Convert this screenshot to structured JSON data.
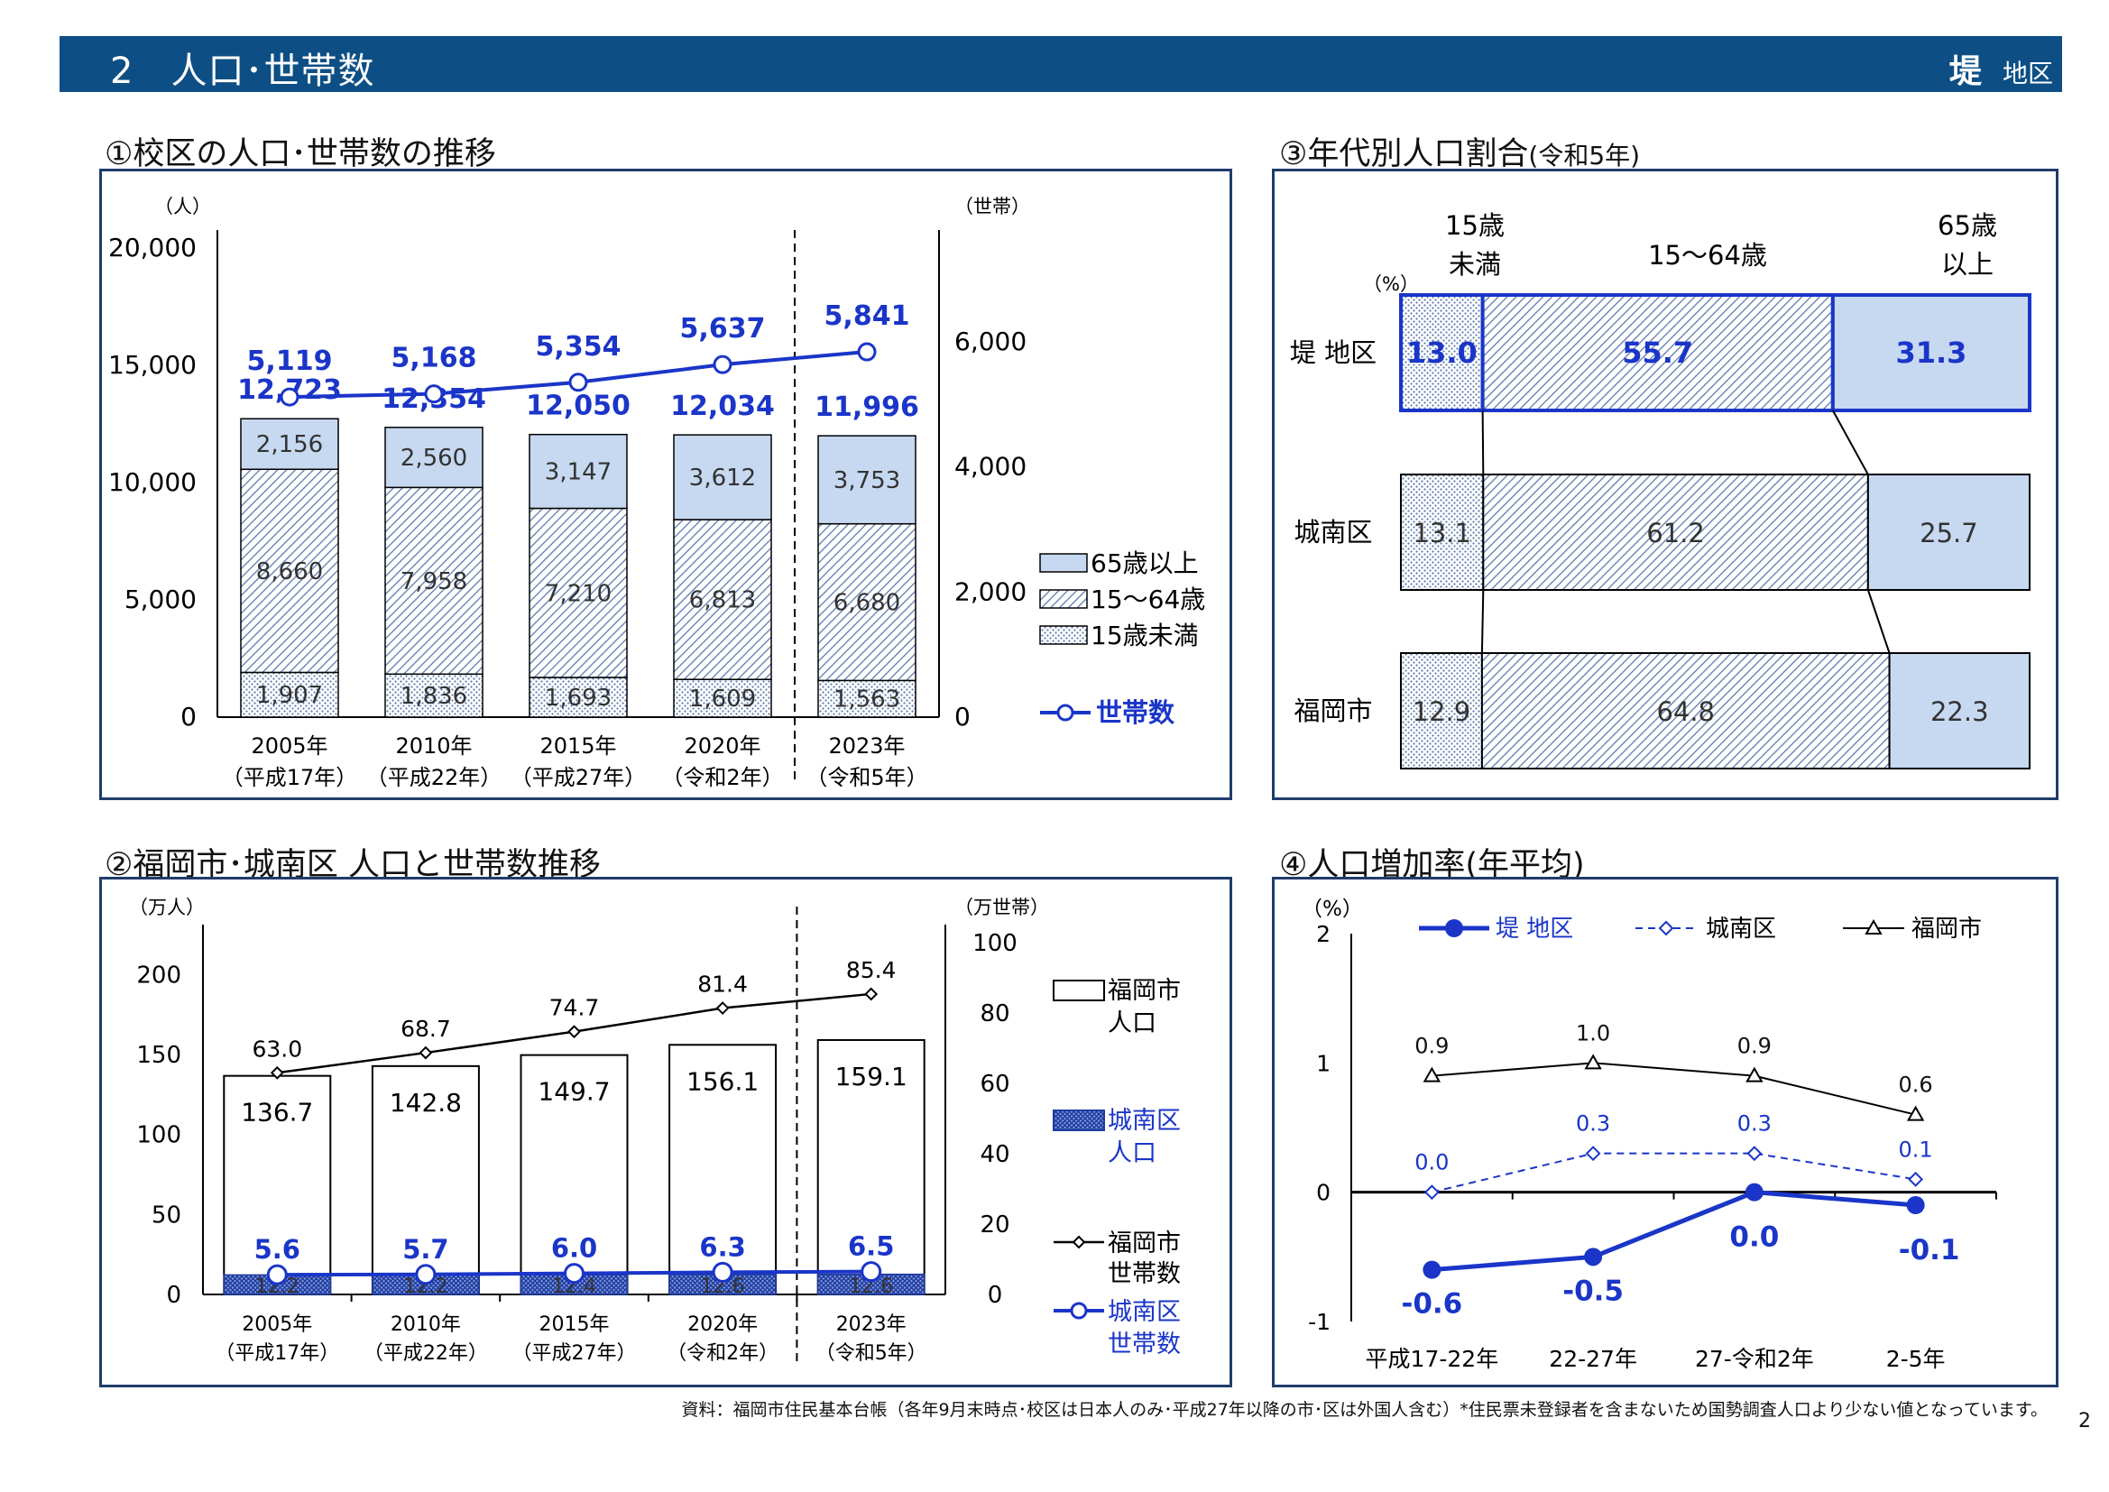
{
  "header": {
    "title": "2　人口･世帯数",
    "district_name": "堤",
    "district_suffix": "地区"
  },
  "colors": {
    "header_bg": "#0d4f85",
    "blue": "#1a35c8",
    "light_blue": "#c6d9f1",
    "panel_border": "#1f3d6b"
  },
  "sections": {
    "s1_title": "①校区の人口･世帯数の推移",
    "s2_title": "②福岡市･城南区 人口と世帯数推移",
    "s3_title": "③年代別人口割合",
    "s3_title_small": "(令和5年)",
    "s4_title": "④人口増加率(年平均)"
  },
  "chart_data": [
    {
      "id": "chart1",
      "type": "bar",
      "stacked": true,
      "left_unit": "（人）",
      "right_unit": "（世帯）",
      "left_ticks": [
        "20,000",
        "15,000",
        "10,000",
        "5,000",
        "0"
      ],
      "right_ticks": [
        "6,000",
        "4,000",
        "2,000",
        "0"
      ],
      "ylim_left": [
        0,
        20000
      ],
      "ylim_right": [
        0,
        7500
      ],
      "categories": [
        "2005年",
        "2010年",
        "2015年",
        "2020年",
        "2023年"
      ],
      "categories_sub": [
        "（平成17年）",
        "（平成22年）",
        "（平成27年）",
        "（令和2年）",
        "（令和5年）"
      ],
      "series": [
        {
          "name": "15歳未満",
          "values": [
            1907,
            1836,
            1693,
            1609,
            1563
          ],
          "labels": [
            "1,907",
            "1,836",
            "1,693",
            "1,609",
            "1,563"
          ]
        },
        {
          "name": "15～64歳",
          "values": [
            8660,
            7958,
            7210,
            6813,
            6680
          ],
          "labels": [
            "8,660",
            "7,958",
            "7,210",
            "6,813",
            "6,680"
          ]
        },
        {
          "name": "65歳以上",
          "values": [
            2156,
            2560,
            3147,
            3612,
            3753
          ],
          "labels": [
            "2,156",
            "2,560",
            "3,147",
            "3,612",
            "3,753"
          ]
        }
      ],
      "totals": [
        "12,723",
        "12,354",
        "12,050",
        "12,034",
        "11,996"
      ],
      "households": {
        "name": "世帯数",
        "values": [
          5119,
          5168,
          5354,
          5637,
          5841
        ],
        "labels": [
          "5,119",
          "5,168",
          "5,354",
          "5,637",
          "5,841"
        ]
      },
      "legend": [
        "65歳以上",
        "15～64歳",
        "15歳未満",
        "世帯数"
      ]
    },
    {
      "id": "chart2",
      "type": "bar",
      "left_unit": "（万人）",
      "right_unit": "（万世帯）",
      "left_ticks": [
        "200",
        "150",
        "100",
        "50",
        "0"
      ],
      "right_ticks": [
        "100",
        "80",
        "60",
        "40",
        "20",
        "0"
      ],
      "ylim_left": [
        0,
        220
      ],
      "ylim_right": [
        0,
        100
      ],
      "categories": [
        "2005年",
        "2010年",
        "2015年",
        "2020年",
        "2023年"
      ],
      "categories_sub": [
        "（平成17年）",
        "（平成22年）",
        "（平成27年）",
        "（令和2年）",
        "（令和5年）"
      ],
      "fukuoka_pop": {
        "name": "福岡市人口",
        "values": [
          136.7,
          142.8,
          149.7,
          156.1,
          159.1
        ],
        "labels": [
          "136.7",
          "142.8",
          "149.7",
          "156.1",
          "159.1"
        ]
      },
      "jonan_pop": {
        "name": "城南区人口",
        "values": [
          12.2,
          12.2,
          12.4,
          12.6,
          12.6
        ],
        "labels": [
          "12.2",
          "12.2",
          "12.4",
          "12.6",
          "12.6"
        ]
      },
      "fukuoka_hh": {
        "name": "福岡市世帯数",
        "values": [
          63.0,
          68.7,
          74.7,
          81.4,
          85.4
        ],
        "labels": [
          "63.0",
          "68.7",
          "74.7",
          "81.4",
          "85.4"
        ]
      },
      "jonan_hh": {
        "name": "城南区世帯数",
        "values": [
          5.6,
          5.7,
          6.0,
          6.3,
          6.5
        ],
        "labels": [
          "5.6",
          "5.7",
          "6.0",
          "6.3",
          "6.5"
        ]
      },
      "legend": [
        "福岡市",
        "人口",
        "城南区",
        "人口",
        "福岡市",
        "世帯数",
        "城南区",
        "世帯数"
      ]
    },
    {
      "id": "chart3",
      "type": "bar",
      "stacked": true,
      "horizontal": true,
      "unit": "（%）",
      "headers": [
        "15歳",
        "未満",
        "15～64歳",
        "65歳",
        "以上"
      ],
      "rows": [
        {
          "label": "堤 地区",
          "values": [
            13.0,
            55.7,
            31.3
          ],
          "labels": [
            "13.0",
            "55.7",
            "31.3"
          ]
        },
        {
          "label": "城南区",
          "values": [
            13.1,
            61.2,
            25.7
          ],
          "labels": [
            "13.1",
            "61.2",
            "25.7"
          ]
        },
        {
          "label": "福岡市",
          "values": [
            12.9,
            64.8,
            22.3
          ],
          "labels": [
            "12.9",
            "64.8",
            "22.3"
          ]
        }
      ]
    },
    {
      "id": "chart4",
      "type": "line",
      "unit": "（%）",
      "y_ticks": [
        "2",
        "1",
        "0",
        "-1"
      ],
      "ylim": [
        -1,
        2
      ],
      "categories": [
        "平成17-22年",
        "22-27年",
        "27-令和2年",
        "2-5年"
      ],
      "series": [
        {
          "name": "堤 地区",
          "values": [
            -0.6,
            -0.5,
            0.0,
            -0.1
          ],
          "labels": [
            "-0.6",
            "-0.5",
            "0.0",
            "-0.1"
          ]
        },
        {
          "name": "城南区",
          "values": [
            0.0,
            0.3,
            0.3,
            0.1
          ],
          "labels": [
            "0.0",
            "0.3",
            "0.3",
            "0.1"
          ]
        },
        {
          "name": "福岡市",
          "values": [
            0.9,
            1.0,
            0.9,
            0.6
          ],
          "labels": [
            "0.9",
            "1.0",
            "0.9",
            "0.6"
          ]
        }
      ]
    }
  ],
  "footer": "資料：福岡市住民基本台帳（各年9月末時点･校区は日本人のみ･平成27年以降の市･区は外国人含む）*住民票未登録者を含まないため国勢調査人口より少ない値となっています。",
  "page_number": "2"
}
